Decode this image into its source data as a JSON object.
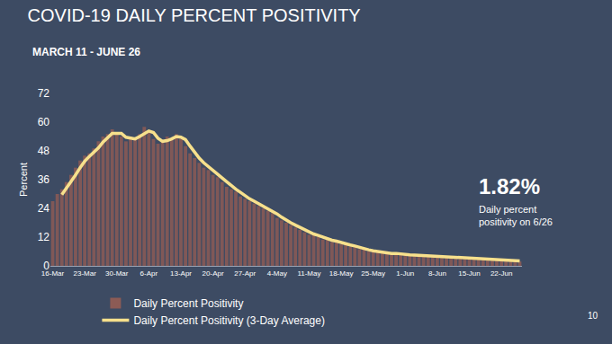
{
  "chart_data": {
    "type": "bar",
    "title": "COVID-19 DAILY PERCENT POSITIVITY",
    "subtitle": "MARCH 11 - JUNE 26",
    "y_label": "Percent",
    "categories": [
      "16-Mar",
      null,
      null,
      null,
      null,
      null,
      null,
      "23-Mar",
      null,
      null,
      null,
      null,
      null,
      null,
      "30-Mar",
      null,
      null,
      null,
      null,
      null,
      null,
      "6-Apr",
      null,
      null,
      null,
      null,
      null,
      null,
      "13-Apr",
      null,
      null,
      null,
      null,
      null,
      null,
      "20-Apr",
      null,
      null,
      null,
      null,
      null,
      null,
      "27-Apr",
      null,
      null,
      null,
      null,
      null,
      null,
      "4-May",
      null,
      null,
      null,
      null,
      null,
      null,
      "11-May",
      null,
      null,
      null,
      null,
      null,
      null,
      "18-May",
      null,
      null,
      null,
      null,
      null,
      null,
      "25-May",
      null,
      null,
      null,
      null,
      null,
      null,
      "1-Jun",
      null,
      null,
      null,
      null,
      null,
      null,
      "8-Jun",
      null,
      null,
      null,
      null,
      null,
      null,
      "15-Jun",
      null,
      null,
      null,
      null,
      null,
      null,
      "22-Jun",
      null,
      null,
      null,
      null
    ],
    "series": [
      {
        "name": "Daily Percent Positivity",
        "type": "bar",
        "color": "#8c5b55",
        "values": [
          27,
          30,
          32,
          35,
          38,
          41,
          44,
          46,
          47,
          49,
          52,
          54,
          55,
          57,
          55,
          54,
          52,
          54,
          53,
          55,
          58,
          56,
          53,
          51,
          52,
          54,
          53,
          55,
          53,
          50,
          47,
          45,
          43,
          41,
          40,
          38,
          37,
          35,
          33,
          32,
          31,
          29,
          28,
          27,
          26,
          25,
          24,
          23,
          22,
          20,
          19,
          18,
          17,
          16,
          15,
          14,
          13,
          13,
          12,
          11,
          11,
          10,
          10,
          9,
          9,
          8,
          8,
          7,
          7,
          6,
          6,
          6,
          5.5,
          5,
          5,
          5,
          4.8,
          4.6,
          4.5,
          4.5,
          4.3,
          4.2,
          4.0,
          3.9,
          3.8,
          3.7,
          3.6,
          3.5,
          3.4,
          3.3,
          3.2,
          3.1,
          3.0,
          2.9,
          2.8,
          2.7,
          2.8,
          2.6,
          2.5,
          2.4,
          2.3,
          2.1,
          1.82
        ]
      },
      {
        "name": "Daily Percent Positivity (3-Day Average)",
        "type": "line",
        "color": "#f7e08c",
        "values": [
          null,
          null,
          29.7,
          32.3,
          35,
          38,
          41,
          43.7,
          45.7,
          47.3,
          49.3,
          51.7,
          53.7,
          55.3,
          55.3,
          55.3,
          53.7,
          53.3,
          53,
          54,
          55.3,
          56.3,
          55.7,
          53.3,
          52,
          52.3,
          53,
          54,
          53.7,
          52.7,
          50,
          47.3,
          45,
          43,
          41.3,
          39.7,
          38.3,
          36.7,
          35,
          33.3,
          32,
          30.7,
          29.3,
          28,
          27,
          26,
          25,
          24,
          23,
          21.7,
          20.3,
          19,
          18,
          17,
          16,
          15,
          14,
          13.3,
          12.7,
          12,
          11.3,
          10.7,
          10.3,
          9.7,
          9.3,
          8.7,
          8.3,
          7.7,
          7.3,
          6.7,
          6.3,
          6,
          5.8,
          5.5,
          5.2,
          5.2,
          4.9,
          4.8,
          4.6,
          4.5,
          4.4,
          4.3,
          4.2,
          4,
          3.9,
          3.8,
          3.7,
          3.6,
          3.5,
          3.4,
          3.3,
          3.2,
          3.1,
          3,
          2.9,
          2.8,
          2.8,
          2.7,
          2.6,
          2.5,
          2.4,
          2.3,
          2.1
        ]
      }
    ],
    "ylim": [
      0,
      72
    ],
    "yticks": [
      0,
      12,
      24,
      36,
      48,
      60,
      72
    ],
    "grid": false,
    "legend": "bottom left",
    "annotations": [
      {
        "text": "1.82%"
      },
      {
        "text": [
          "Daily percent",
          "positivity on 6/26"
        ]
      },
      {
        "text": "10"
      }
    ]
  }
}
